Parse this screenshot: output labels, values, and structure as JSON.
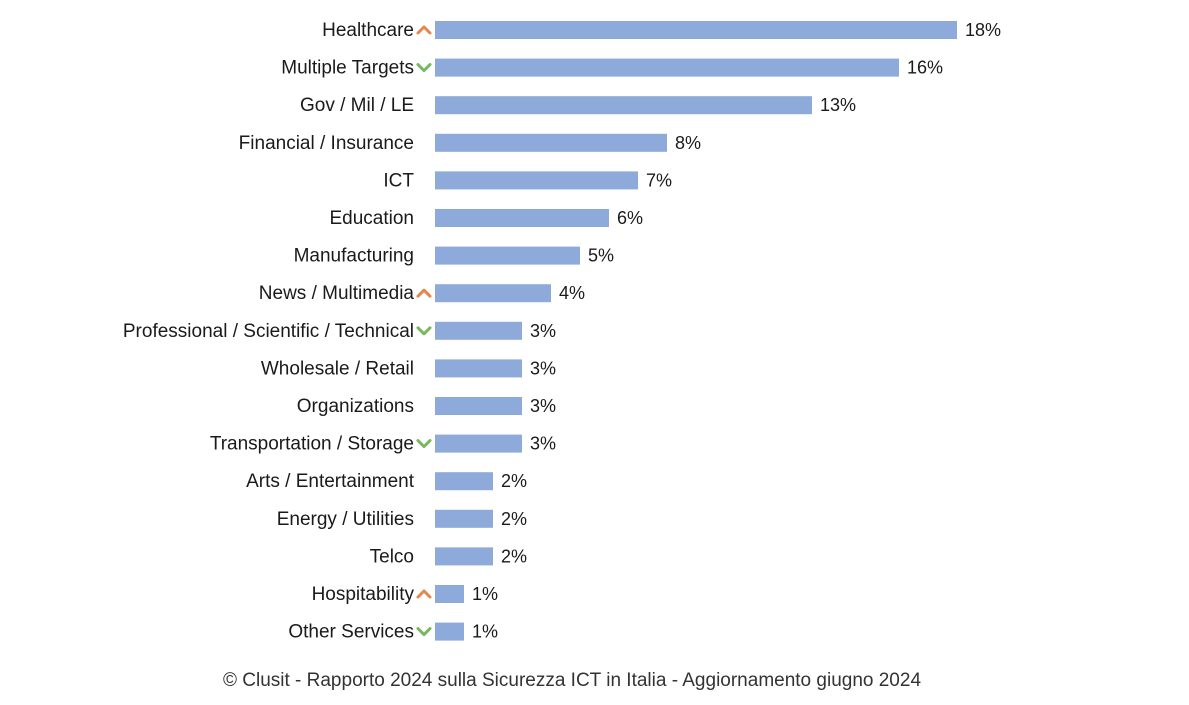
{
  "chart_data": {
    "type": "bar",
    "orientation": "horizontal",
    "title": "",
    "xlabel": "",
    "ylabel": "",
    "xlim": [
      0,
      18
    ],
    "grid": false,
    "legend": "none",
    "bar_color": "#8eaadb",
    "categories": [
      "Healthcare",
      "Multiple Targets",
      "Gov / Mil / LE",
      "Financial / Insurance",
      "ICT",
      "Education",
      "Manufacturing",
      "News / Multimedia",
      "Professional / Scientific / Technical",
      "Wholesale / Retail",
      "Organizations",
      "Transportation / Storage",
      "Arts / Entertainment",
      "Energy / Utilities",
      "Telco",
      "Hospitability",
      "Other Services"
    ],
    "values": [
      18,
      16,
      13,
      8,
      7,
      6,
      5,
      4,
      3,
      3,
      3,
      3,
      2,
      2,
      2,
      1,
      1
    ],
    "value_labels": [
      "18%",
      "16%",
      "13%",
      "8%",
      "7%",
      "6%",
      "5%",
      "4%",
      "3%",
      "3%",
      "3%",
      "3%",
      "2%",
      "2%",
      "2%",
      "1%",
      "1%"
    ],
    "trend_markers": [
      "up",
      "down",
      "",
      "",
      "",
      "",
      "",
      "up",
      "down",
      "",
      "",
      "down",
      "",
      "",
      "",
      "up",
      "down"
    ],
    "trend_colors": {
      "up": "#e2884f",
      "down": "#78b85f"
    }
  },
  "footer": "© Clusit - Rapporto 2024 sulla Sicurezza ICT in Italia - Aggiornamento giugno 2024"
}
